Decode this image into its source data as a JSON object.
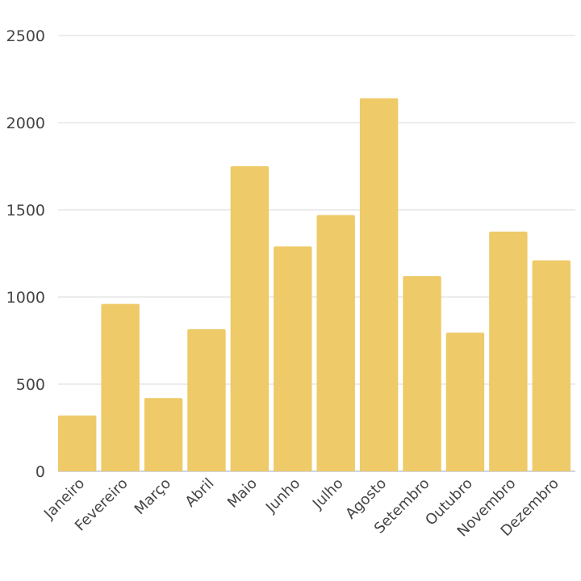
{
  "chart_data": {
    "type": "bar",
    "categories": [
      "Janeiro",
      "Fevereiro",
      "Março",
      "Abril",
      "Maio",
      "Junho",
      "Julho",
      "Agosto",
      "Setembro",
      "Outubro",
      "Novembro",
      "Dezembro"
    ],
    "values": [
      320,
      960,
      420,
      815,
      1750,
      1290,
      1470,
      2140,
      1120,
      795,
      1375,
      1210
    ],
    "ylim": [
      0,
      2500
    ],
    "yticks": [
      "0",
      "500",
      "1000",
      "1500",
      "2000",
      "2500"
    ],
    "grid": true,
    "legend": "none",
    "bar_color": "#eeca68",
    "grid_color": "#d9d9d9",
    "label_color": "#444444"
  }
}
